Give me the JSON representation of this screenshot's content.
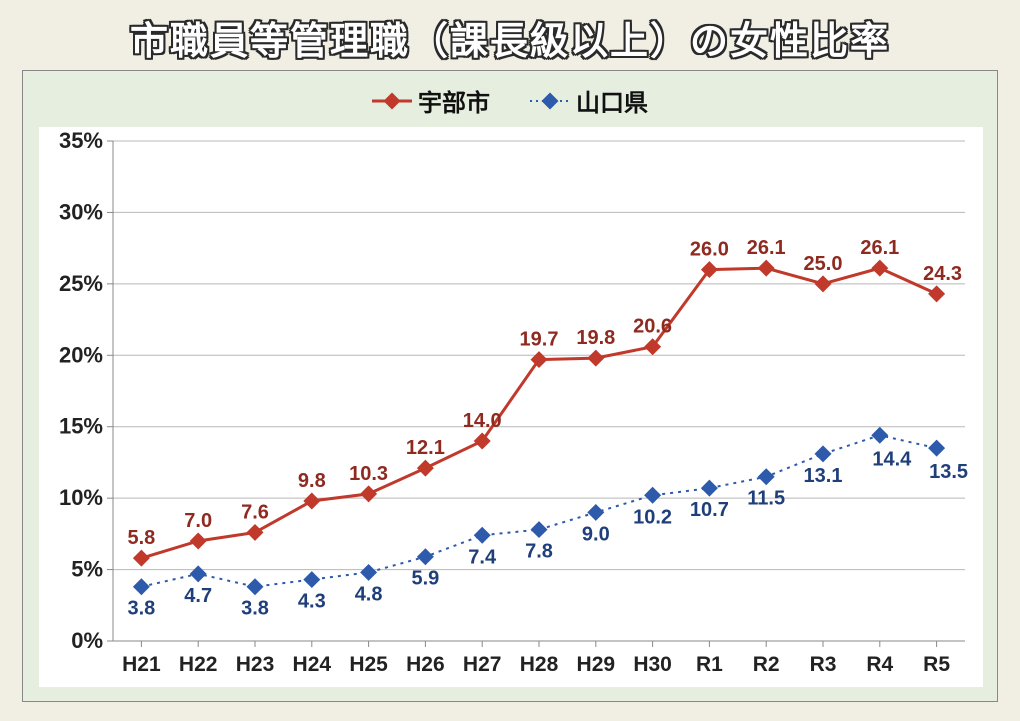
{
  "title": "市職員等管理職（課長級以上）の女性比率",
  "chart": {
    "type": "line",
    "background_color": "#e6efdf",
    "plot_background": "#ffffff",
    "grid_color": "#b8b8b8",
    "axis_color": "#888888",
    "categories": [
      "H21",
      "H22",
      "H23",
      "H24",
      "H25",
      "H26",
      "H27",
      "H28",
      "H29",
      "H30",
      "R1",
      "R2",
      "R3",
      "R4",
      "R5"
    ],
    "ylim": [
      0,
      35
    ],
    "ytick_step": 5,
    "ytick_suffix": "%",
    "tick_font_size": 22,
    "tick_font_weight": "bold",
    "legend_font_size": 24,
    "data_label_font_size": 20,
    "series": [
      {
        "name": "宇部市",
        "color": "#c0392b",
        "line_style": "solid",
        "line_width": 3,
        "marker": "diamond",
        "marker_size": 12,
        "values": [
          5.8,
          7.0,
          7.6,
          9.8,
          10.3,
          12.1,
          14.0,
          19.7,
          19.8,
          20.6,
          26.0,
          26.1,
          25.0,
          26.1,
          24.3
        ],
        "label_position": "above",
        "label_color": "#8e2a20"
      },
      {
        "name": "山口県",
        "color": "#2e5aac",
        "line_style": "dotted",
        "line_width": 2,
        "marker": "diamond",
        "marker_size": 12,
        "values": [
          3.8,
          4.7,
          3.8,
          4.3,
          4.8,
          5.9,
          7.4,
          7.8,
          9.0,
          10.2,
          10.7,
          11.5,
          13.1,
          14.4,
          13.5
        ],
        "label_position": "below",
        "label_color": "#1f3f7a"
      }
    ]
  }
}
